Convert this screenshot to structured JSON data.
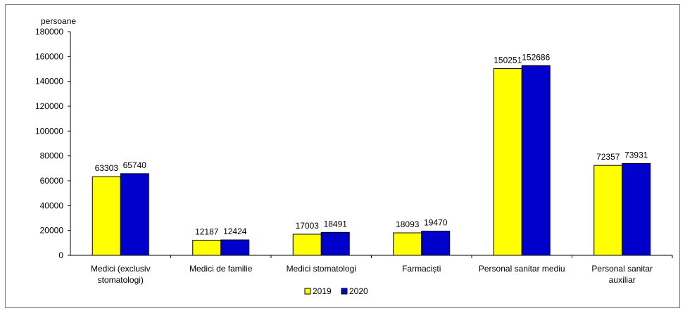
{
  "chart_data": {
    "type": "bar",
    "ylabel": "persoane",
    "ylim": [
      0,
      180000
    ],
    "yticks": [
      0,
      20000,
      40000,
      60000,
      80000,
      100000,
      120000,
      140000,
      160000,
      180000
    ],
    "categories": [
      [
        "Medici (exclusiv",
        "stomatologi)"
      ],
      [
        "Medici de familie"
      ],
      [
        "Medici stomatologi"
      ],
      [
        "Farmaciști"
      ],
      [
        "Personal sanitar mediu"
      ],
      [
        "Personal sanitar",
        "auxiliar"
      ]
    ],
    "series": [
      {
        "name": "2019",
        "color": "#ffff00",
        "values": [
          63303,
          12187,
          17003,
          18093,
          150251,
          72357
        ]
      },
      {
        "name": "2020",
        "color": "#0000cc",
        "values": [
          65740,
          12424,
          18491,
          19470,
          152686,
          73931
        ]
      }
    ],
    "legend_position": "bottom-center",
    "grid": false
  }
}
